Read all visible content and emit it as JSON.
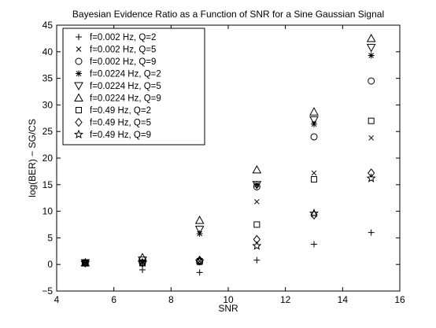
{
  "chart_data": {
    "type": "scatter",
    "title": "Bayesian Evidence Ratio as a Function of SNR for a Sine Gaussian Signal",
    "xlabel": "SNR",
    "ylabel": "log(BER) − SG/CS",
    "xlim": [
      4,
      16
    ],
    "ylim": [
      -5,
      45
    ],
    "xticks": [
      "4",
      "6",
      "8",
      "10",
      "12",
      "14",
      "16"
    ],
    "yticks": [
      "−5",
      "0",
      "5",
      "10",
      "15",
      "20",
      "25",
      "30",
      "35",
      "40",
      "45"
    ],
    "grid": false,
    "legend_position": "top-left",
    "x": [
      5,
      7,
      9,
      11,
      13,
      15
    ],
    "series": [
      {
        "name": "f=0.002 Hz, Q=2",
        "marker": "plus",
        "values": [
          0.3,
          -1.0,
          -1.5,
          0.8,
          3.8,
          6.0
        ]
      },
      {
        "name": "f=0.002 Hz, Q=5",
        "marker": "x",
        "values": [
          0.3,
          0.4,
          0.6,
          11.8,
          17.2,
          23.8
        ]
      },
      {
        "name": "f=0.002 Hz, Q=9",
        "marker": "circle",
        "values": [
          0.3,
          0.3,
          0.5,
          14.6,
          24.0,
          34.5
        ]
      },
      {
        "name": "f=0.0224 Hz, Q=2",
        "marker": "asterisk",
        "values": [
          0.3,
          0.5,
          5.8,
          15.0,
          26.4,
          39.3
        ]
      },
      {
        "name": "f=0.0224 Hz, Q=5",
        "marker": "triangle-down",
        "values": [
          0.3,
          0.8,
          6.6,
          15.0,
          27.2,
          40.8
        ]
      },
      {
        "name": "f=0.0224 Hz, Q=9",
        "marker": "triangle-up",
        "values": [
          0.3,
          1.3,
          8.3,
          17.8,
          28.7,
          42.5
        ]
      },
      {
        "name": "f=0.49 Hz, Q=2",
        "marker": "square",
        "values": [
          0.3,
          0.3,
          0.6,
          7.5,
          16.0,
          27.0
        ]
      },
      {
        "name": "f=0.49 Hz, Q=5",
        "marker": "diamond",
        "values": [
          0.3,
          0.3,
          0.8,
          4.7,
          9.3,
          17.2
        ]
      },
      {
        "name": "f=0.49 Hz, Q=9",
        "marker": "star",
        "values": [
          0.3,
          0.3,
          0.6,
          3.5,
          9.6,
          16.2
        ]
      }
    ]
  }
}
